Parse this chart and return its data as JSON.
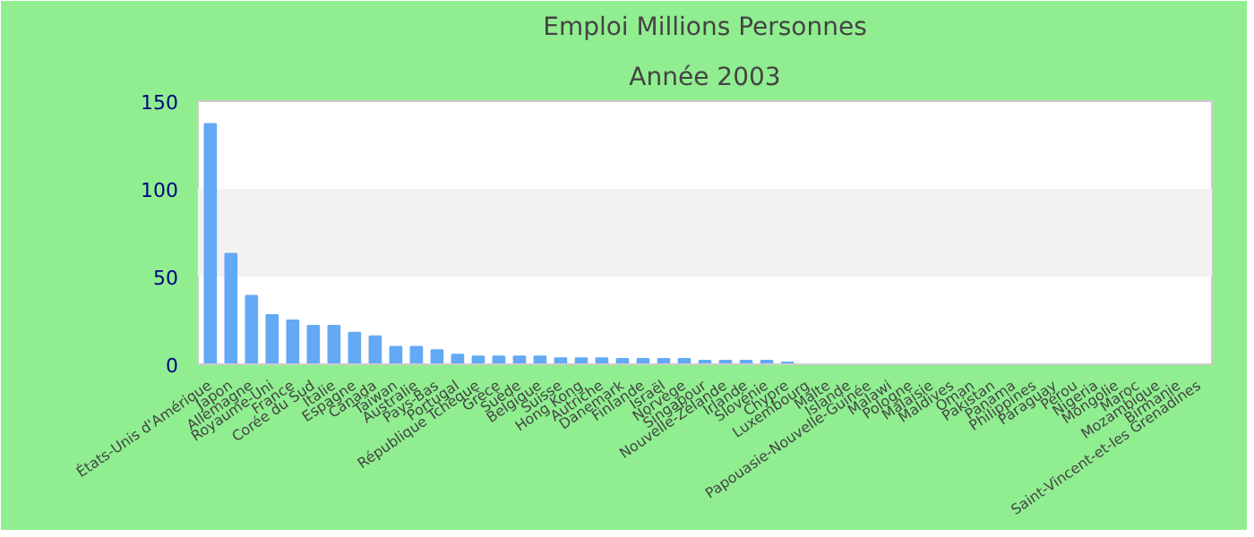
{
  "chart_data": {
    "type": "bar",
    "title": "Emploi Millions Personnes",
    "subtitle": "Année 2003",
    "categories": [
      "États-Unis d'Amérique",
      "Japon",
      "Allemagne",
      "Royaume-Uni",
      "France",
      "Corée du Sud",
      "Italie",
      "Espagne",
      "Canada",
      "Taïwan",
      "Australie",
      "Pays-Bas",
      "Portugal",
      "République Tchèque",
      "Grèce",
      "Suède",
      "Belgique",
      "Suisse",
      "Hong Kong",
      "Autriche",
      "Danemark",
      "Finlande",
      "Israël",
      "Norvège",
      "Singapour",
      "Nouvelle-Zélande",
      "Irlande",
      "Slovénie",
      "Chypre",
      "Luxembourg",
      "Malte",
      "Islande",
      "Papouasie-Nouvelle-Guinée",
      "Malawi",
      "Pologne",
      "Malaisie",
      "Maldives",
      "Oman",
      "Pakistan",
      "Panama",
      "Philippines",
      "Paraguay",
      "Pérou",
      "Nigeria",
      "Mongolie",
      "Maroc",
      "Mozambique",
      "Birmanie",
      "Saint-Vincent-et-les Grenadines"
    ],
    "values": [
      137,
      63,
      39,
      28,
      25,
      22,
      22,
      18,
      16,
      10,
      10,
      8,
      5.5,
      4.5,
      4.5,
      4.5,
      4.5,
      3.5,
      3.5,
      3.5,
      3,
      3,
      3,
      3,
      2,
      2,
      2,
      2,
      1,
      0,
      0,
      0,
      0,
      0,
      0,
      0,
      0,
      0,
      0,
      0,
      0,
      0,
      0,
      0,
      0,
      0,
      0,
      0,
      0
    ],
    "color": "#63a9f5",
    "ylim": [
      0,
      150
    ],
    "yticks": [
      0,
      50,
      100,
      150
    ],
    "grid": false,
    "bands": [
      {
        "axis": "y",
        "from": 50,
        "to": 100,
        "color": "#f2f2f2"
      }
    ]
  }
}
